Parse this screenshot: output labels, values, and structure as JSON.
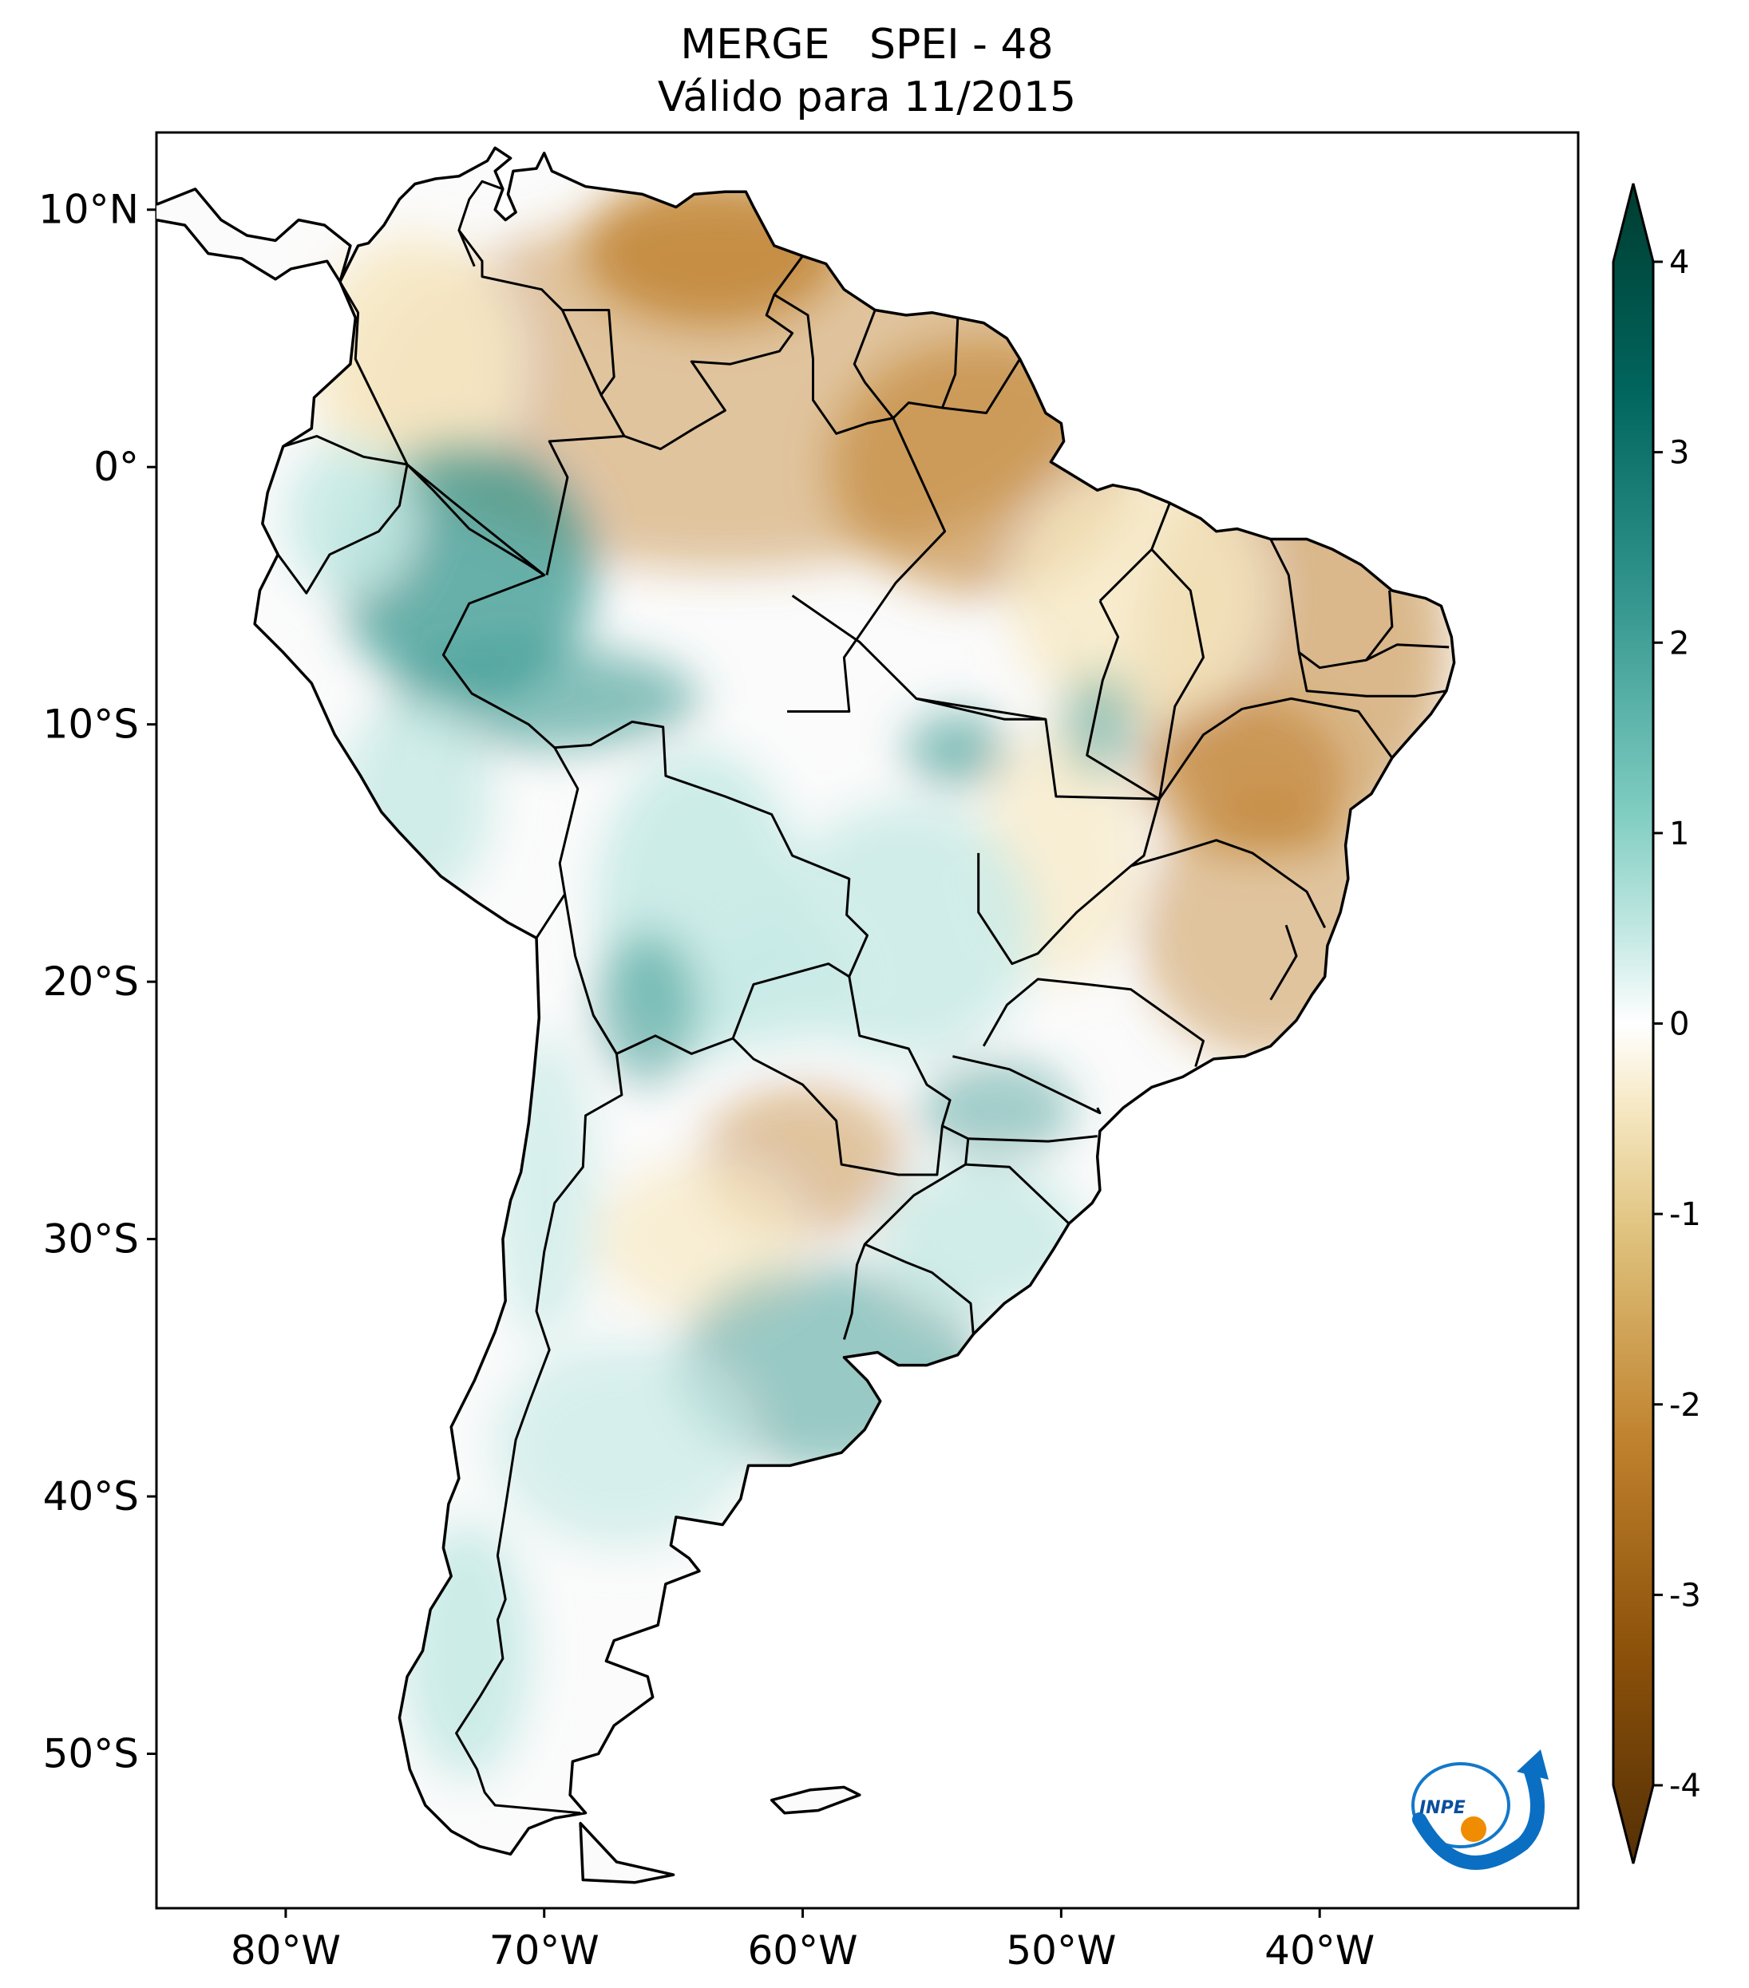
{
  "title": {
    "line1": "MERGE   SPEI - 48",
    "line2": "Válido para 11/2015"
  },
  "map": {
    "lon_range": [
      -85,
      -30
    ],
    "lat_range": [
      -56,
      13
    ],
    "lat_ticks": [
      {
        "value": 10,
        "label": "10°N"
      },
      {
        "value": 0,
        "label": "0°"
      },
      {
        "value": -10,
        "label": "10°S"
      },
      {
        "value": -20,
        "label": "20°S"
      },
      {
        "value": -30,
        "label": "30°S"
      },
      {
        "value": -40,
        "label": "40°S"
      },
      {
        "value": -50,
        "label": "50°S"
      }
    ],
    "lon_ticks": [
      {
        "value": -80,
        "label": "80°W"
      },
      {
        "value": -70,
        "label": "70°W"
      },
      {
        "value": -60,
        "label": "60°W"
      },
      {
        "value": -50,
        "label": "50°W"
      },
      {
        "value": -40,
        "label": "40°W"
      }
    ]
  },
  "colorbar": {
    "min": -4,
    "max": 4,
    "ticks": [
      {
        "value": 4,
        "label": "4"
      },
      {
        "value": 3,
        "label": "3"
      },
      {
        "value": 2,
        "label": "2"
      },
      {
        "value": 1,
        "label": "1"
      },
      {
        "value": 0,
        "label": "0"
      },
      {
        "value": -1,
        "label": "-1"
      },
      {
        "value": -2,
        "label": "-2"
      },
      {
        "value": -3,
        "label": "-3"
      },
      {
        "value": -4,
        "label": "-4"
      }
    ],
    "colors": {
      "wet_max": "#003c30",
      "wet_mid": "#35978f",
      "wet_low": "#c7eae5",
      "neutral": "#f5f5f5",
      "dry_low": "#f6e8c3",
      "dry_mid": "#bf812d",
      "dry_max": "#543005"
    }
  },
  "logo": {
    "text": "INPE"
  }
}
